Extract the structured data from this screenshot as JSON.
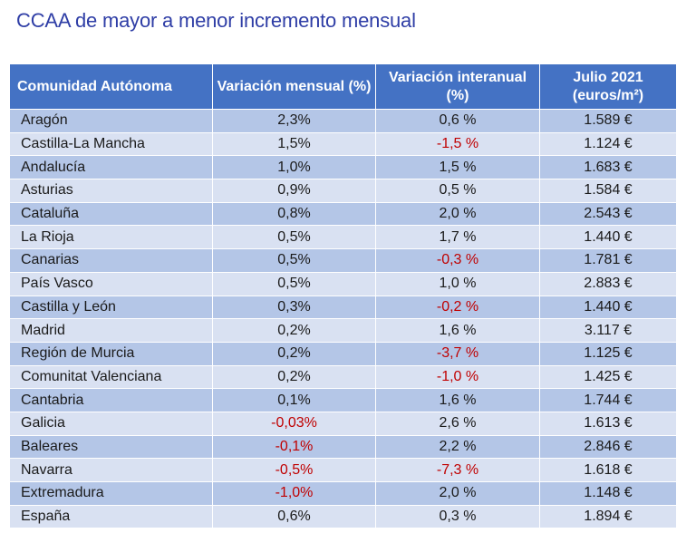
{
  "title": "CCAA de mayor a menor incremento mensual",
  "colors": {
    "header_bg": "#4472c4",
    "row_dark": "#b4c6e7",
    "row_light": "#d9e1f2",
    "negative": "#c00000",
    "title": "#2f3ea6"
  },
  "table": {
    "headers": [
      "Comunidad Autónoma",
      "Variación mensual (%)",
      "Variación interanual (%)",
      "Julio 2021 (euros/m²)"
    ],
    "rows": [
      {
        "name": "Aragón",
        "mensual": "2,3%",
        "interanual": "0,6 %",
        "precio": "1.589 €"
      },
      {
        "name": "Castilla-La Mancha",
        "mensual": "1,5%",
        "interanual": "-1,5 %",
        "precio": "1.124 €"
      },
      {
        "name": "Andalucía",
        "mensual": "1,0%",
        "interanual": "1,5 %",
        "precio": "1.683 €"
      },
      {
        "name": "Asturias",
        "mensual": "0,9%",
        "interanual": "0,5 %",
        "precio": "1.584 €"
      },
      {
        "name": "Cataluña",
        "mensual": "0,8%",
        "interanual": "2,0 %",
        "precio": "2.543 €"
      },
      {
        "name": "La Rioja",
        "mensual": "0,5%",
        "interanual": "1,7 %",
        "precio": "1.440 €"
      },
      {
        "name": "Canarias",
        "mensual": "0,5%",
        "interanual": "-0,3 %",
        "precio": "1.781 €"
      },
      {
        "name": "País Vasco",
        "mensual": "0,5%",
        "interanual": "1,0 %",
        "precio": "2.883 €"
      },
      {
        "name": "Castilla y León",
        "mensual": "0,3%",
        "interanual": "-0,2 %",
        "precio": "1.440 €"
      },
      {
        "name": "Madrid",
        "mensual": "0,2%",
        "interanual": "1,6 %",
        "precio": "3.117 €"
      },
      {
        "name": "Región de Murcia",
        "mensual": "0,2%",
        "interanual": "-3,7 %",
        "precio": "1.125 €"
      },
      {
        "name": "Comunitat Valenciana",
        "mensual": "0,2%",
        "interanual": "-1,0 %",
        "precio": "1.425 €"
      },
      {
        "name": "Cantabria",
        "mensual": "0,1%",
        "interanual": "1,6 %",
        "precio": "1.744 €"
      },
      {
        "name": "Galicia",
        "mensual": "-0,03%",
        "interanual": "2,6 %",
        "precio": "1.613 €"
      },
      {
        "name": "Baleares",
        "mensual": "-0,1%",
        "interanual": "2,2 %",
        "precio": "2.846 €"
      },
      {
        "name": "Navarra",
        "mensual": "-0,5%",
        "interanual": "-7,3 %",
        "precio": "1.618 €"
      },
      {
        "name": "Extremadura",
        "mensual": "-1,0%",
        "interanual": "2,0 %",
        "precio": "1.148 €"
      },
      {
        "name": "España",
        "mensual": "0,6%",
        "interanual": "0,3 %",
        "precio": "1.894 €"
      }
    ]
  }
}
